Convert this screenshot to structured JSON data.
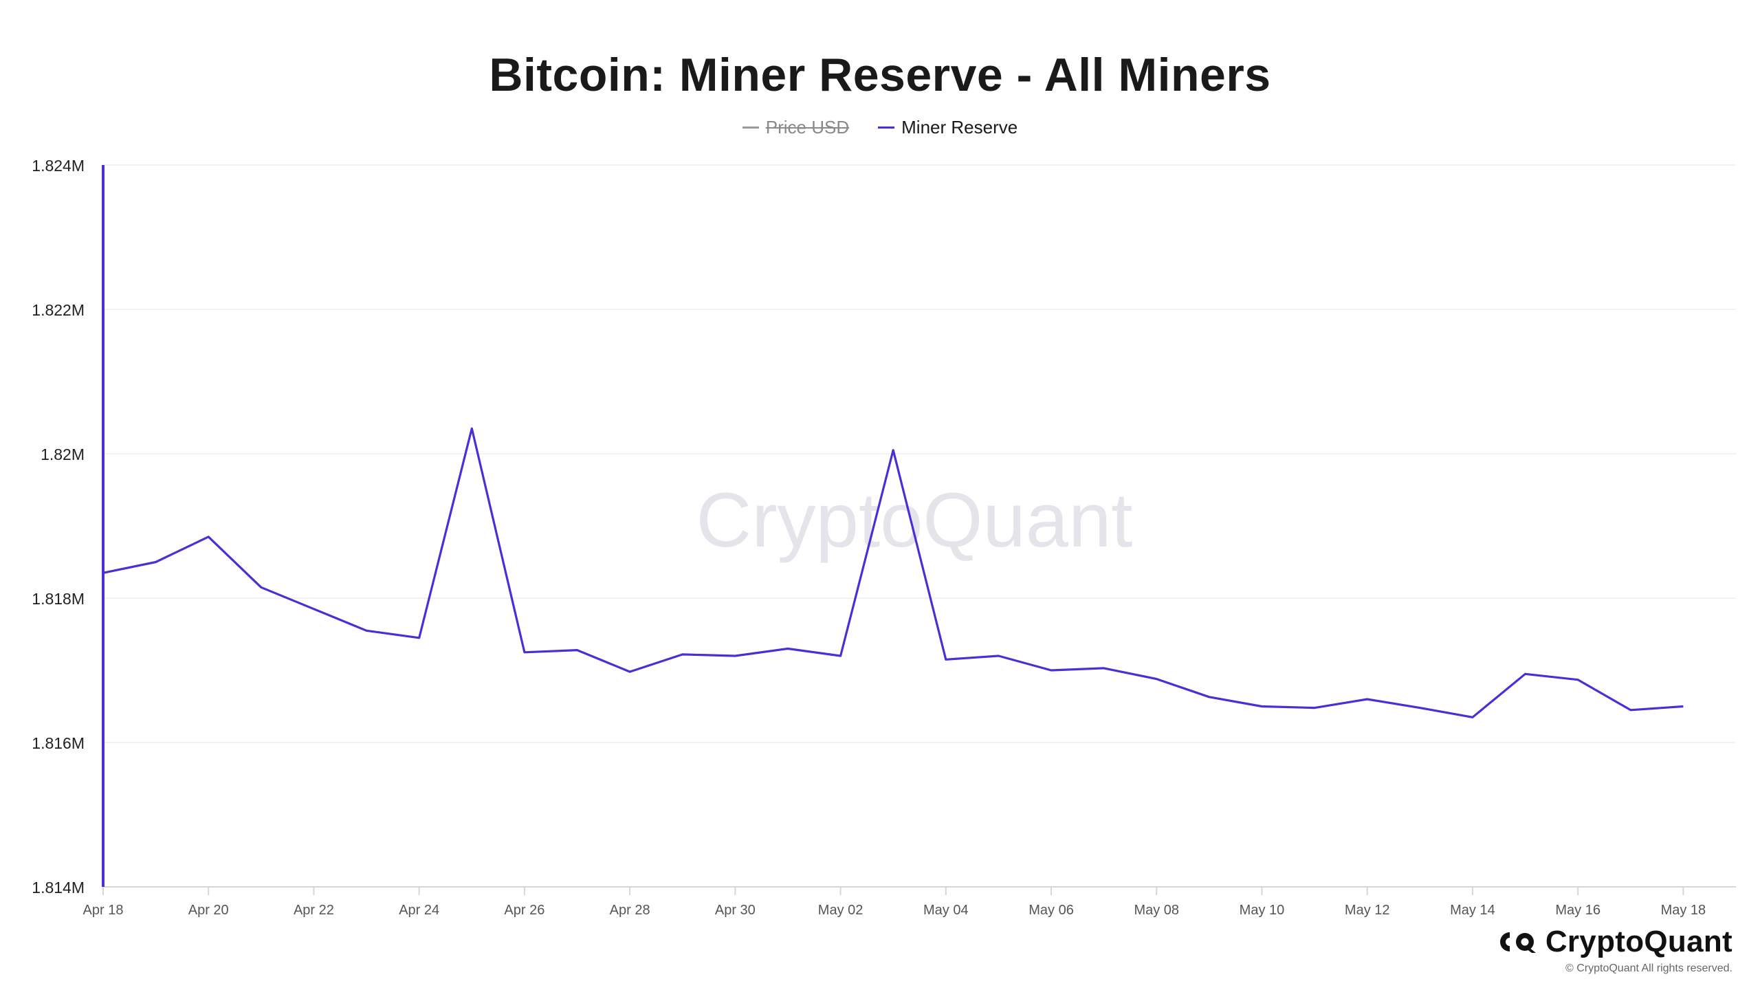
{
  "colors": {
    "series": "#4b2fd6",
    "price": "#9a9a9a",
    "axis": "#d6d6d6",
    "grid": "#eeeeee",
    "tick_text": "#555555",
    "watermark": "#e4e4ea"
  },
  "brand": {
    "logo_icon": "cryptoquant-logo-icon",
    "name": "CryptoQuant",
    "copyright": "© CryptoQuant All rights reserved."
  },
  "chart_data": {
    "type": "line",
    "title": "Bitcoin: Miner Reserve - All Miners",
    "watermark": "CryptoQuant",
    "legend": [
      {
        "name": "Price USD",
        "enabled": false
      },
      {
        "name": "Miner Reserve",
        "enabled": true
      }
    ],
    "legend_position": "top-center",
    "grid": true,
    "ylim": [
      1814000,
      1824000
    ],
    "y_ticks": [
      {
        "value": 1814000,
        "label": "1.814M"
      },
      {
        "value": 1816000,
        "label": "1.816M"
      },
      {
        "value": 1818000,
        "label": "1.818M"
      },
      {
        "value": 1820000,
        "label": "1.82M"
      },
      {
        "value": 1822000,
        "label": "1.822M"
      },
      {
        "value": 1824000,
        "label": "1.824M"
      }
    ],
    "xlim": [
      "2024-04-18",
      "2024-05-19"
    ],
    "x_ticks": [
      {
        "date": "2024-04-18",
        "label": "Apr 18"
      },
      {
        "date": "2024-04-20",
        "label": "Apr 20"
      },
      {
        "date": "2024-04-22",
        "label": "Apr 22"
      },
      {
        "date": "2024-04-24",
        "label": "Apr 24"
      },
      {
        "date": "2024-04-26",
        "label": "Apr 26"
      },
      {
        "date": "2024-04-28",
        "label": "Apr 28"
      },
      {
        "date": "2024-04-30",
        "label": "Apr 30"
      },
      {
        "date": "2024-05-02",
        "label": "May 02"
      },
      {
        "date": "2024-05-04",
        "label": "May 04"
      },
      {
        "date": "2024-05-06",
        "label": "May 06"
      },
      {
        "date": "2024-05-08",
        "label": "May 08"
      },
      {
        "date": "2024-05-10",
        "label": "May 10"
      },
      {
        "date": "2024-05-12",
        "label": "May 12"
      },
      {
        "date": "2024-05-14",
        "label": "May 14"
      },
      {
        "date": "2024-05-16",
        "label": "May 16"
      },
      {
        "date": "2024-05-18",
        "label": "May 18"
      }
    ],
    "series": [
      {
        "name": "Miner Reserve",
        "points": [
          [
            "2024-04-18",
            1818350
          ],
          [
            "2024-04-19",
            1818500
          ],
          [
            "2024-04-20",
            1818850
          ],
          [
            "2024-04-21",
            1818150
          ],
          [
            "2024-04-22",
            1817850
          ],
          [
            "2024-04-23",
            1817550
          ],
          [
            "2024-04-24",
            1817450
          ],
          [
            "2024-04-25",
            1820350
          ],
          [
            "2024-04-26",
            1817250
          ],
          [
            "2024-04-27",
            1817280
          ],
          [
            "2024-04-28",
            1816980
          ],
          [
            "2024-04-29",
            1817220
          ],
          [
            "2024-04-30",
            1817200
          ],
          [
            "2024-05-01",
            1817300
          ],
          [
            "2024-05-02",
            1817200
          ],
          [
            "2024-05-03",
            1820050
          ],
          [
            "2024-05-04",
            1817150
          ],
          [
            "2024-05-05",
            1817200
          ],
          [
            "2024-05-06",
            1817000
          ],
          [
            "2024-05-07",
            1817030
          ],
          [
            "2024-05-08",
            1816880
          ],
          [
            "2024-05-09",
            1816630
          ],
          [
            "2024-05-10",
            1816500
          ],
          [
            "2024-05-11",
            1816480
          ],
          [
            "2024-05-12",
            1816600
          ],
          [
            "2024-05-13",
            1816480
          ],
          [
            "2024-05-14",
            1816350
          ],
          [
            "2024-05-15",
            1816950
          ],
          [
            "2024-05-16",
            1816870
          ],
          [
            "2024-05-17",
            1816450
          ],
          [
            "2024-05-18",
            1816500
          ]
        ]
      }
    ]
  }
}
